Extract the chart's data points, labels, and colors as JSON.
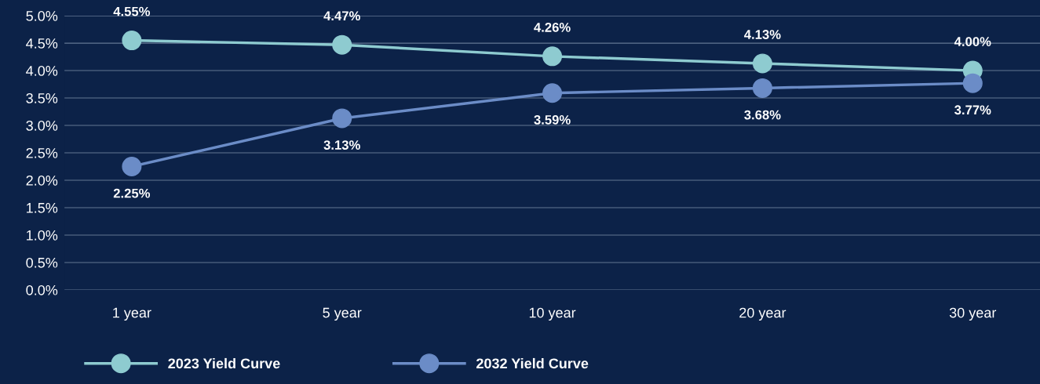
{
  "chart_data": {
    "type": "line",
    "categories": [
      "1 year",
      "5 year",
      "10 year",
      "20 year",
      "30 year"
    ],
    "series": [
      {
        "name": "2023 Yield Curve",
        "color": "#8ecbd0",
        "values": [
          4.55,
          4.47,
          4.26,
          4.13,
          4.0
        ],
        "value_labels": [
          "4.55%",
          "4.47%",
          "4.26%",
          "4.13%",
          "4.00%"
        ]
      },
      {
        "name": "2032 Yield Curve",
        "color": "#6b8cc7",
        "values": [
          2.25,
          3.13,
          3.59,
          3.68,
          3.77
        ],
        "value_labels": [
          "2.25%",
          "3.13%",
          "3.59%",
          "3.68%",
          "3.77%"
        ]
      }
    ],
    "ylim": [
      0,
      5.0
    ],
    "yticks": [
      {
        "value": 0,
        "label": "0.0%"
      },
      {
        "value": 0.5,
        "label": "0.5%"
      },
      {
        "value": 1.0,
        "label": "1.0%"
      },
      {
        "value": 1.5,
        "label": "1.5%"
      },
      {
        "value": 2.0,
        "label": "2.0%"
      },
      {
        "value": 2.5,
        "label": "2.5%"
      },
      {
        "value": 3.0,
        "label": "3.0%"
      },
      {
        "value": 3.5,
        "label": "3.5%"
      },
      {
        "value": 4.0,
        "label": "4.0%"
      },
      {
        "value": 4.5,
        "label": "4.5%"
      },
      {
        "value": 5.0,
        "label": "5.0%"
      }
    ],
    "grid": "y",
    "legend": "bottom left",
    "marker": "circle",
    "line_style": "solid"
  }
}
